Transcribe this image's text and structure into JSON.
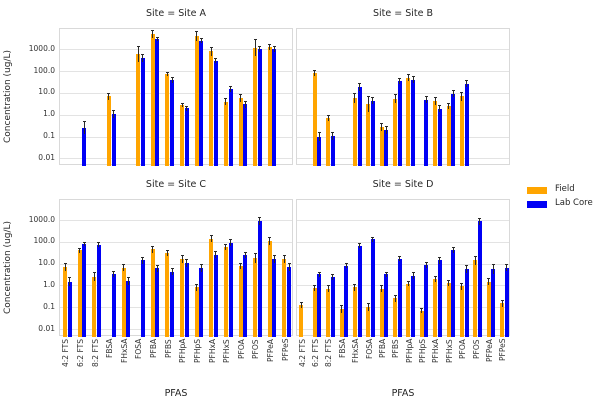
{
  "chart_data": {
    "type": "bar",
    "scale_y": "log",
    "grid": true,
    "ylabel": "Concentration (ug/L)",
    "xlabel": "PFAS",
    "y_ticks": [
      "1000.0",
      "100.0",
      "10.0",
      "1.0",
      "0.1",
      "0.01"
    ],
    "y_tick_values": [
      1000,
      100,
      10,
      1,
      0.1,
      0.01
    ],
    "ylim": [
      0.004,
      8000
    ],
    "categories": [
      "4:2 FTS",
      "6:2 FTS",
      "8:2 FTS",
      "FBSA",
      "FHxSA",
      "FOSA",
      "PFBA",
      "PFBS",
      "PFHpA",
      "PFHpS",
      "PFHxA",
      "PFHxS",
      "PFOA",
      "PFOS",
      "PFPeA",
      "PFPeS"
    ],
    "legend": [
      {
        "label": "Field",
        "color": "#FFA500"
      },
      {
        "label": "Lab Core",
        "color": "#0000F5"
      }
    ],
    "error_bar_color": "#2a2a2a",
    "facets": [
      {
        "title": "Site = Site A",
        "field": [
          null,
          null,
          null,
          7,
          null,
          600,
          5000,
          75,
          2.7,
          4000,
          800,
          4,
          6,
          1200,
          1300,
          null
        ],
        "field_hi": [
          null,
          null,
          null,
          10,
          null,
          1400,
          7800,
          95,
          3.3,
          7000,
          1300,
          6,
          9,
          3000,
          1800,
          null
        ],
        "lab": [
          null,
          0.25,
          null,
          1.1,
          null,
          400,
          3000,
          40,
          2.0,
          2500,
          300,
          15,
          3,
          1000,
          1000,
          null
        ],
        "lab_hi": [
          null,
          0.5,
          null,
          1.7,
          null,
          600,
          3700,
          55,
          2.6,
          3300,
          390,
          20,
          4.5,
          1400,
          1400,
          null
        ]
      },
      {
        "title": "Site = Site B",
        "field": [
          null,
          80,
          0.7,
          null,
          6,
          3,
          0.28,
          5.5,
          50,
          null,
          4.2,
          2.5,
          7,
          null,
          null,
          null
        ],
        "field_hi": [
          null,
          110,
          1.0,
          null,
          10,
          7,
          0.44,
          9,
          75,
          null,
          6.6,
          3.5,
          11,
          null,
          null,
          null
        ],
        "lab": [
          null,
          0.1,
          0.11,
          null,
          19,
          4.4,
          0.2,
          35,
          40,
          5,
          1.9,
          9.4,
          27,
          null,
          null,
          null
        ],
        "lab_hi": [
          null,
          0.16,
          0.17,
          null,
          29,
          6.2,
          0.31,
          50,
          57,
          7.6,
          2.8,
          14,
          38,
          null,
          null,
          null
        ]
      },
      {
        "title": "Site = Site C",
        "field": [
          7,
          40,
          2.5,
          null,
          6.5,
          null,
          45,
          30,
          16,
          0.8,
          140,
          55,
          8,
          18,
          110,
          16
        ],
        "field_hi": [
          11,
          54,
          3.9,
          null,
          9.2,
          null,
          66,
          42,
          25,
          1.2,
          200,
          76,
          11,
          30,
          168,
          25
        ],
        "lab": [
          1.5,
          79,
          72,
          3.3,
          1.6,
          14,
          6,
          4.3,
          11,
          6,
          25,
          90,
          24,
          900,
          16,
          7
        ],
        "lab_hi": [
          2.3,
          100,
          95,
          4.7,
          2.4,
          20,
          8.6,
          6.1,
          17,
          9.2,
          36,
          132,
          33,
          1400,
          24,
          11
        ]
      },
      {
        "title": "Site = Site D",
        "field": [
          0.13,
          0.75,
          0.7,
          0.08,
          0.8,
          0.1,
          0.7,
          0.25,
          1.2,
          0.07,
          2.0,
          1.3,
          0.9,
          14,
          1.5,
          0.15
        ],
        "field_hi": [
          0.18,
          1.0,
          1.0,
          0.12,
          1.15,
          0.15,
          1.0,
          0.35,
          1.6,
          0.095,
          2.8,
          1.8,
          1.3,
          22,
          2.2,
          0.21
        ],
        "lab": [
          null,
          3.3,
          2.5,
          8,
          65,
          130,
          3.3,
          17,
          2.8,
          8.5,
          14,
          42,
          5.6,
          850,
          5.6,
          6.4
        ],
        "lab_hi": [
          null,
          4.3,
          3.4,
          10.4,
          85,
          170,
          4.3,
          22,
          4.0,
          11.8,
          20,
          60,
          8.6,
          1200,
          9.3,
          9.3
        ]
      }
    ]
  },
  "ui": {
    "background": "#ffffff",
    "grid_color": "#e3e3e3",
    "text_color": "#262626"
  }
}
